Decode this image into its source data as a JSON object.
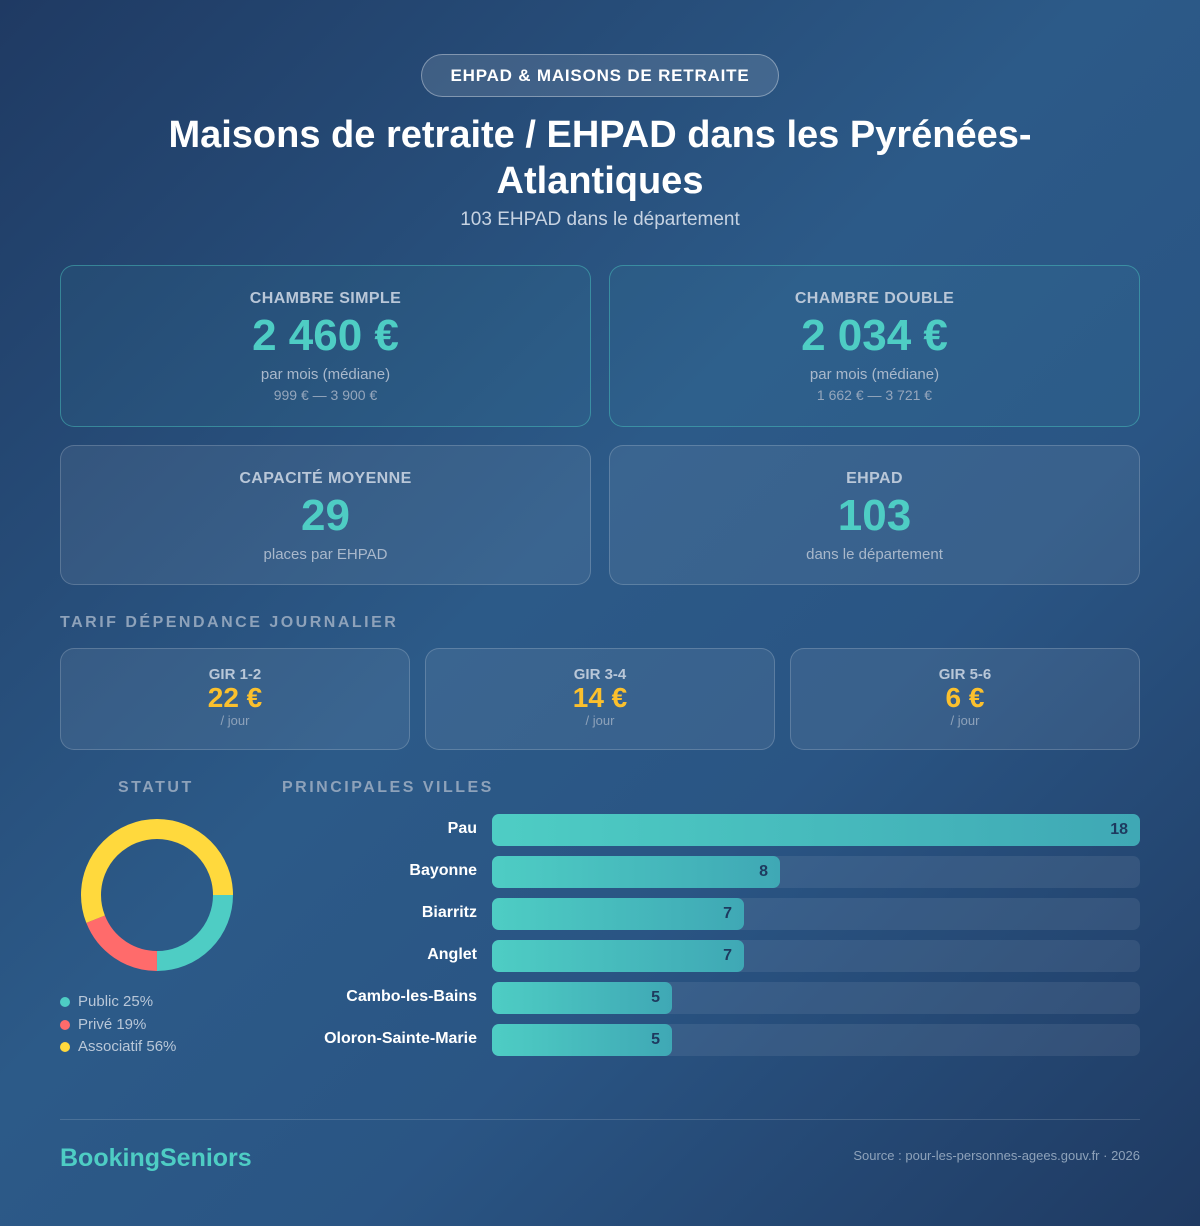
{
  "badge": "EHPAD & MAISONS DE RETRAITE",
  "title": "Maisons de retraite / EHPAD dans les Pyrénées-Atlantiques",
  "subtitle": "103 EHPAD dans le département",
  "cards": [
    {
      "label": "CHAMBRE SIMPLE",
      "value": "2 460 €",
      "sub": "par mois (médiane)",
      "range": "999 € — 3 900 €"
    },
    {
      "label": "CHAMBRE DOUBLE",
      "value": "2 034 €",
      "sub": "par mois (médiane)",
      "range": "1 662 € — 3 721 €"
    },
    {
      "label": "CAPACITÉ MOYENNE",
      "value": "29",
      "sub": "places par EHPAD"
    },
    {
      "label": "EHPAD",
      "value": "103",
      "sub": "dans le département"
    }
  ],
  "tarif_title": "TARIF DÉPENDANCE JOURNALIER",
  "gir": [
    {
      "label": "GIR 1-2",
      "value": "22 €",
      "unit": "/ jour"
    },
    {
      "label": "GIR 3-4",
      "value": "14 €",
      "unit": "/ jour"
    },
    {
      "label": "GIR 5-6",
      "value": "6 €",
      "unit": "/ jour"
    }
  ],
  "chart_data": [
    {
      "type": "pie",
      "title": "STATUT",
      "donut": true,
      "slices": [
        {
          "name": "Public",
          "value": 25,
          "label": "Public 25%",
          "color": "#4ecdc4"
        },
        {
          "name": "Privé",
          "value": 19,
          "label": "Privé 19%",
          "color": "#ff6b6b"
        },
        {
          "name": "Associatif",
          "value": 56,
          "label": "Associatif 56%",
          "color": "#ffd93d"
        }
      ]
    },
    {
      "type": "bar",
      "orientation": "horizontal",
      "title": "PRINCIPALES VILLES",
      "categories": [
        "Pau",
        "Bayonne",
        "Biarritz",
        "Anglet",
        "Cambo-les-Bains",
        "Oloron-Sainte-Marie"
      ],
      "values": [
        18,
        8,
        7,
        7,
        5,
        5
      ],
      "xlim": [
        0,
        18
      ]
    }
  ],
  "footer": {
    "brand": "BookingSeniors",
    "source": "Source : pour-les-personnes-agees.gouv.fr · 2026"
  }
}
